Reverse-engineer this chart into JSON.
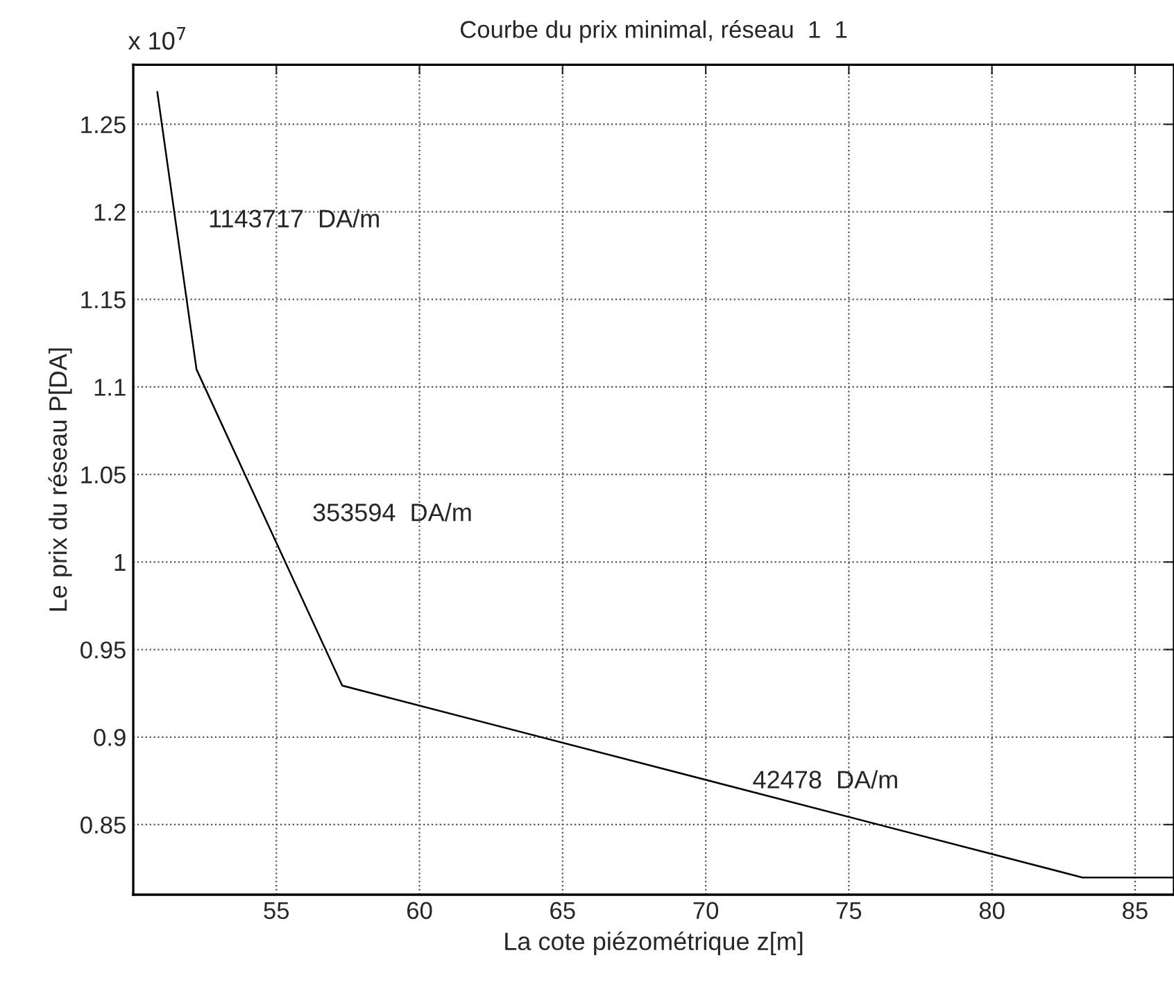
{
  "chart_data": {
    "type": "line",
    "title": "Courbe du prix minimal, réseau  1  1",
    "xlabel": "La cote piézométrique z[m]",
    "ylabel": "Le prix du réseau P[DA]",
    "x": [
      50.84,
      52.21,
      57.3,
      83.16,
      86.36
    ],
    "series": [
      {
        "color": "#000000",
        "values": [
          1.2685,
          1.11,
          0.9294,
          0.8198,
          0.8198
        ]
      }
    ],
    "xlim": [
      50,
      86.36
    ],
    "ylim": [
      0.81,
      1.284
    ],
    "xticks": [
      55,
      60,
      65,
      70,
      75,
      80,
      85
    ],
    "yticks": [
      0.85,
      0.9,
      0.95,
      1,
      1.05,
      1.1,
      1.15,
      1.2,
      1.25
    ],
    "annotations": [
      "x 10$^{7}$",
      "1143717  DA/m",
      "353594  DA/m",
      "42478  DA/m"
    ],
    "grid": true,
    "line_style": "solid",
    "marker": "none"
  }
}
